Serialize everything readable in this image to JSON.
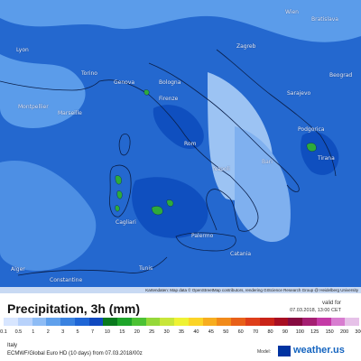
{
  "map": {
    "cities": [
      {
        "name": "Wien"
      },
      {
        "name": "Bratislava"
      },
      {
        "name": "Lyon"
      },
      {
        "name": "Torino"
      },
      {
        "name": "Genova"
      },
      {
        "name": "Bologna"
      },
      {
        "name": "Firenze"
      },
      {
        "name": "Rom"
      },
      {
        "name": "Napoli"
      },
      {
        "name": "Bari"
      },
      {
        "name": "Marseille"
      },
      {
        "name": "Montpellier"
      },
      {
        "name": "Zagreb"
      },
      {
        "name": "Sarajevo"
      },
      {
        "name": "Beograd"
      },
      {
        "name": "Tirana"
      },
      {
        "name": "Podgorica"
      },
      {
        "name": "Palermo"
      },
      {
        "name": "Catania"
      },
      {
        "name": "Tunis"
      },
      {
        "name": "Alger"
      },
      {
        "name": "Constantine"
      },
      {
        "name": "Cagliari"
      }
    ],
    "attribution": "Kartendaten: Map data © OpenStreetMap contributors, rendering GIScience Research Group @ Heidelberg University"
  },
  "legend": {
    "title": "Precipitation, 3h (mm)",
    "valid_label": "valid for",
    "valid_date": "07.03.2018, 13:00 CET",
    "ticks": [
      "0.1",
      "0.5",
      "1",
      "2",
      "3",
      "5",
      "7",
      "10",
      "15",
      "20",
      "25",
      "30",
      "35",
      "40",
      "45",
      "50",
      "60",
      "70",
      "80",
      "90",
      "100",
      "125",
      "150",
      "200",
      "300"
    ],
    "colors": [
      "#d8e6ff",
      "#b8d2fb",
      "#8ebcf5",
      "#5fa0ec",
      "#3a82e0",
      "#1f66d6",
      "#1049bf",
      "#0a7a1e",
      "#1ea52a",
      "#4cc234",
      "#95d83a",
      "#c8e63a",
      "#eef234",
      "#fbd427",
      "#f7ad1f",
      "#f18a1a",
      "#e86019",
      "#de3e1a",
      "#c92318",
      "#a80e22",
      "#860a40",
      "#a51f72",
      "#c43aa6",
      "#d87dd0",
      "#e6c1e8"
    ]
  },
  "footer": {
    "region": "Italy",
    "model_run": "ECMWF/Global Euro HD (10 days) from 07.03.2018/00z",
    "model_label": "Model:",
    "brand": "weather",
    "brand_suffix": ".us"
  }
}
